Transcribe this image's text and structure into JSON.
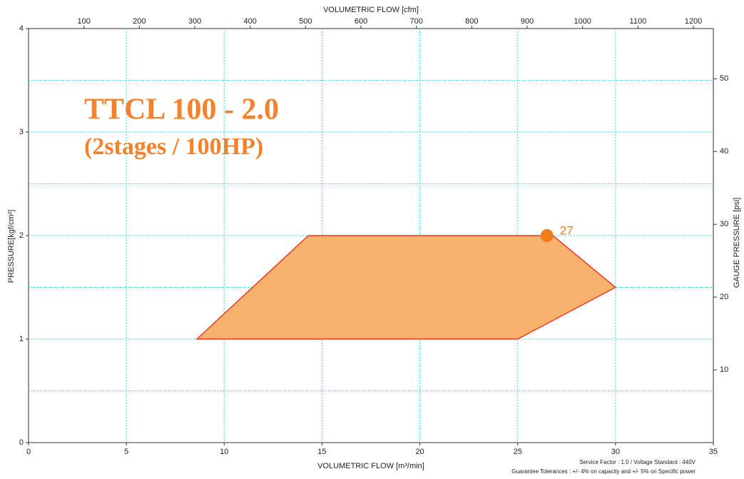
{
  "chart_data": {
    "type": "area",
    "title": "TTCL 100 - 2.0",
    "subtitle": "(2stages / 100HP)",
    "xlabel": "VOLUMETRIC FLOW [m³/min]",
    "x2label": "VOLUMETRIC FLOW [cfm]",
    "ylabel": "PRESSURE[kgf/cm²]",
    "y2label": "GAUGE PRESSURE [psi]",
    "xlim": [
      0,
      35
    ],
    "xticks": [
      0,
      5,
      10,
      15,
      20,
      25,
      30,
      35
    ],
    "x2lim": [
      0,
      1236
    ],
    "x2ticks": [
      100,
      200,
      300,
      400,
      500,
      600,
      700,
      800,
      900,
      1000,
      1100,
      1200
    ],
    "ylim": [
      0,
      4
    ],
    "yticks": [
      0,
      1,
      2,
      3,
      4
    ],
    "yminor": [
      0.5,
      1.5,
      2.5,
      3.5
    ],
    "y2lim": [
      0,
      56.9
    ],
    "y2ticks": [
      10,
      20,
      30,
      40,
      50
    ],
    "grid": true,
    "series": [
      {
        "color": "#f9b26e",
        "edge": "#ee3b1f",
        "x": [
          8.6,
          14.3,
          26.8,
          30,
          25,
          8.6
        ],
        "values": [
          1,
          2,
          2,
          1.5,
          1,
          1
        ]
      }
    ],
    "point": {
      "x": 26.5,
      "y": 2,
      "label": "27",
      "color": "#f07d1a"
    },
    "notes": [
      "Service Factor : 1.0 / Voltage Standard : 440V",
      "Guarantee Tolerances : +/- 4% on capacity and +/- 5% on Specific power"
    ]
  }
}
